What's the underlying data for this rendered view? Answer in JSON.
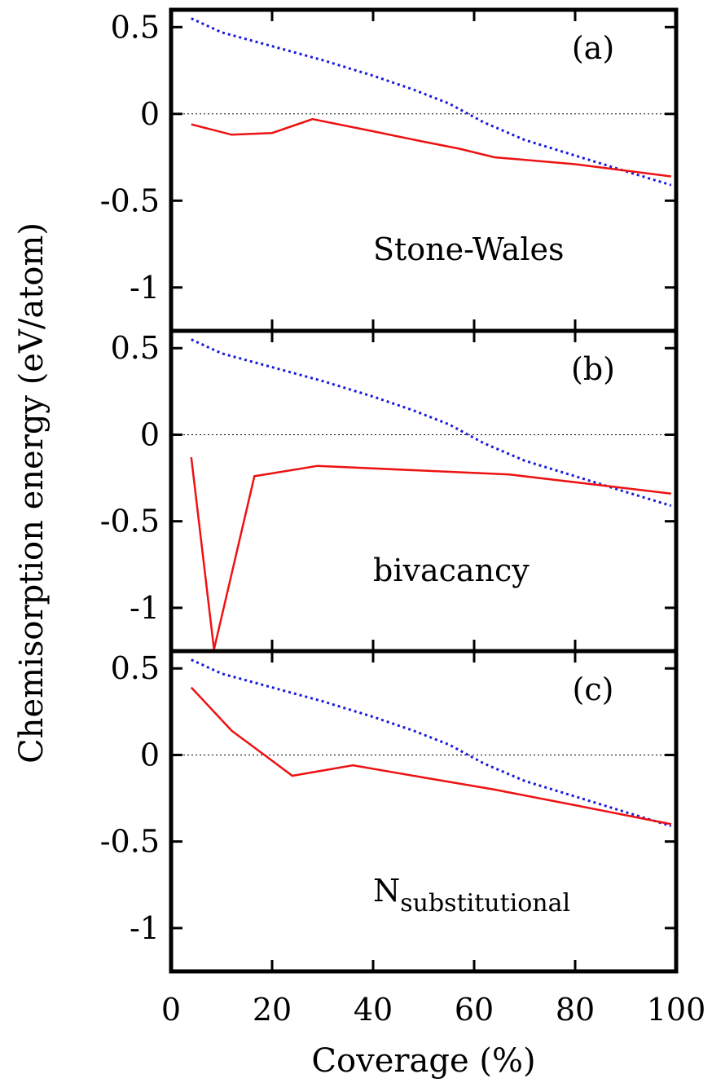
{
  "chart_data": {
    "type": "line",
    "xlabel": "Coverage (%)",
    "ylabel": "Chemisorption energy (eV/atom)",
    "xlim": [
      0,
      100
    ],
    "ylim": [
      -1.25,
      0.6
    ],
    "x_ticks": [
      "0",
      "20",
      "40",
      "60",
      "80",
      "100"
    ],
    "y_ticks": [
      {
        "value": 0.5,
        "label": "0.5"
      },
      {
        "value": 0,
        "label": "0"
      },
      {
        "value": -0.5,
        "label": "-0.5"
      },
      {
        "value": -1,
        "label": "-1"
      }
    ],
    "colors": {
      "solid": "#ee1111",
      "dotted": "#1a1adc",
      "zero": "#000000"
    },
    "panels": [
      {
        "label": "(a)",
        "annotation": "Stone-Wales",
        "annotation_sub": "",
        "series": [
          {
            "style": "dotted",
            "x": [
              4,
              10,
              20,
              30,
              40,
              48,
              55,
              62,
              70,
              80,
              90,
              99
            ],
            "y": [
              0.55,
              0.47,
              0.39,
              0.31,
              0.22,
              0.14,
              0.06,
              -0.05,
              -0.15,
              -0.24,
              -0.33,
              -0.41
            ]
          },
          {
            "style": "solid",
            "x": [
              4,
              12,
              20,
              28,
              40,
              50,
              57,
              64,
              80,
              99
            ],
            "y": [
              -0.06,
              -0.12,
              -0.11,
              -0.03,
              -0.1,
              -0.16,
              -0.2,
              -0.25,
              -0.29,
              -0.36
            ]
          }
        ]
      },
      {
        "label": "(b)",
        "annotation": "bivacancy",
        "annotation_sub": "",
        "series": [
          {
            "style": "dotted",
            "x": [
              4,
              10,
              20,
              30,
              40,
              48,
              55,
              62,
              70,
              80,
              90,
              99
            ],
            "y": [
              0.55,
              0.47,
              0.39,
              0.31,
              0.22,
              0.14,
              0.06,
              -0.05,
              -0.15,
              -0.24,
              -0.33,
              -0.41
            ]
          },
          {
            "style": "solid",
            "x": [
              4,
              8.5,
              16.5,
              29,
              67,
              99
            ],
            "y": [
              -0.13,
              -1.24,
              -0.24,
              -0.18,
              -0.23,
              -0.34
            ]
          }
        ]
      },
      {
        "label": "(c)",
        "annotation": "N",
        "annotation_sub": "substitutional",
        "series": [
          {
            "style": "dotted",
            "x": [
              4,
              10,
              20,
              30,
              40,
              48,
              55,
              62,
              70,
              80,
              90,
              99
            ],
            "y": [
              0.55,
              0.47,
              0.39,
              0.31,
              0.22,
              0.14,
              0.06,
              -0.05,
              -0.15,
              -0.24,
              -0.33,
              -0.41
            ]
          },
          {
            "style": "solid",
            "x": [
              4,
              12,
              18,
              24,
              36,
              50,
              64,
              80,
              99
            ],
            "y": [
              0.39,
              0.14,
              0.01,
              -0.12,
              -0.06,
              -0.13,
              -0.2,
              -0.29,
              -0.4
            ]
          }
        ]
      }
    ]
  }
}
